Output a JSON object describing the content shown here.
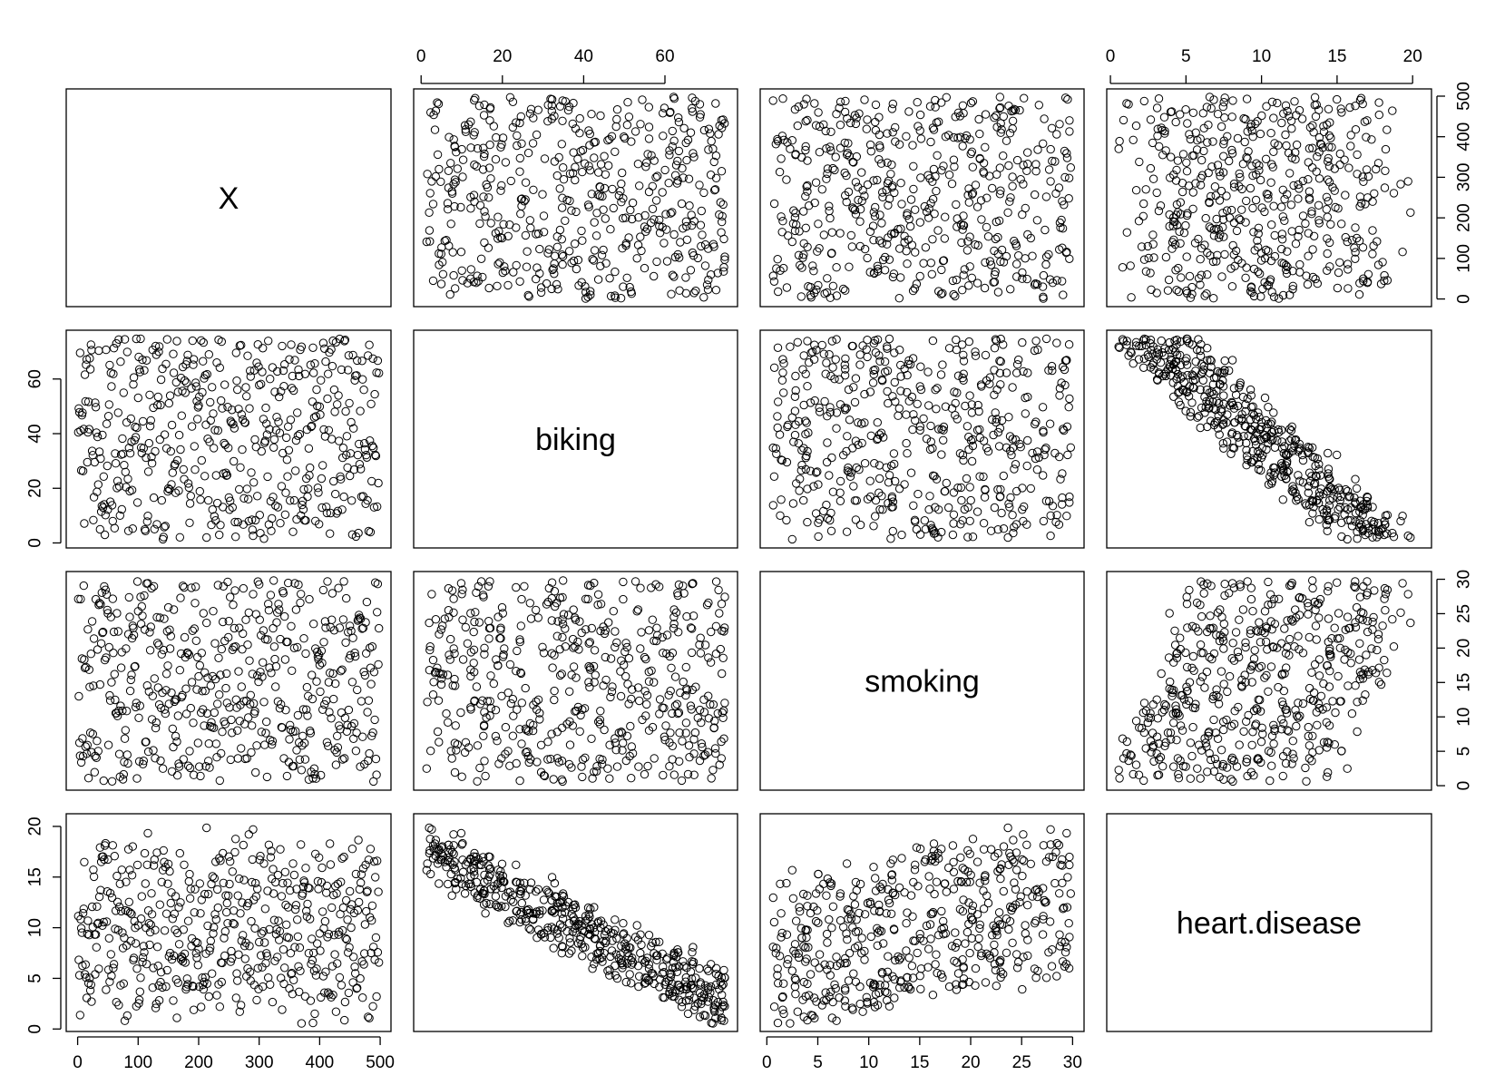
{
  "chart_data": {
    "type": "scatter",
    "variables": [
      {
        "name": "X",
        "range": [
          1,
          498
        ],
        "ticks": [
          0,
          100,
          200,
          300,
          400,
          500
        ]
      },
      {
        "name": "biking",
        "range": [
          1.119,
          74.907
        ],
        "ticks": [
          0,
          20,
          40,
          60
        ]
      },
      {
        "name": "smoking",
        "range": [
          0.526,
          29.947
        ],
        "ticks": [
          0,
          5,
          10,
          15,
          20,
          25,
          30
        ]
      },
      {
        "name": "heart.disease",
        "range": [
          0.552,
          20.453
        ],
        "ticks": [
          0,
          5,
          10,
          15,
          20
        ]
      }
    ],
    "n_points": 498,
    "relationships": {
      "heart.disease_vs_biking": {
        "direction": "negative",
        "approx_line": [
          17.7,
          -0.2
        ]
      },
      "heart.disease_vs_smoking": {
        "direction": "positive",
        "approx_line": [
          0,
          0.18
        ]
      }
    },
    "grid": false,
    "legend": "none"
  }
}
